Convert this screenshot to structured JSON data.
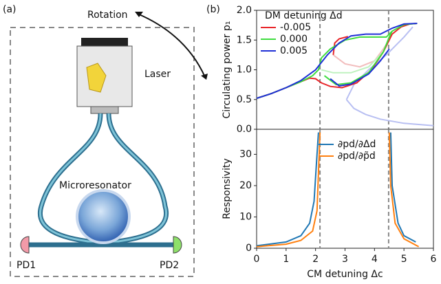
{
  "panel_a": {
    "label": "(a)",
    "rotation": "Rotation",
    "laser": "Laser",
    "microresonator": "Microresonator",
    "pd1": "PD1",
    "pd2": "PD2"
  },
  "panel_b_label": "(b)",
  "chart_data": [
    {
      "type": "line",
      "ylabel": "Circulating power p₁",
      "legend_title": "DM detuning Δd",
      "xlim": [
        0,
        6
      ],
      "ylim": [
        0,
        2
      ],
      "yticks": [
        {
          "value": 0,
          "label": "0.0"
        },
        {
          "value": 0.5,
          "label": "0.5"
        },
        {
          "value": 1,
          "label": "1.0"
        },
        {
          "value": 1.5,
          "label": "1.5"
        },
        {
          "value": 2,
          "label": "2.0"
        }
      ],
      "vlines": [
        2.15,
        4.48
      ],
      "series": [
        {
          "color": "#b8bff2",
          "x": [
            3.05,
            3.3,
            3.7,
            4.2,
            5,
            6,
            null,
            3.05,
            3.3,
            3.8,
            4.4,
            5,
            5.3
          ],
          "values": [
            0.5,
            0.35,
            0.25,
            0.17,
            0.1,
            0.06,
            null,
            0.5,
            0.75,
            1.0,
            1.25,
            1.55,
            1.72
          ]
        },
        {
          "color": "#f2bcbc",
          "x": [
            2.6,
            3,
            3.5,
            4,
            4.3,
            4.5
          ],
          "values": [
            1.25,
            1.1,
            1.05,
            1.15,
            1.35,
            1.5
          ]
        },
        {
          "color": "#bff2bf",
          "x": [
            2.2,
            2.6,
            3.2,
            3.8,
            4.3,
            4.5
          ],
          "values": [
            1.0,
            0.95,
            0.95,
            1.05,
            1.3,
            1.55
          ]
        },
        {
          "name": "-0.005",
          "color": "#e8262a",
          "x": [
            0,
            0.5,
            1,
            1.5,
            1.8,
            2.0,
            2.2,
            2.5,
            2.9,
            3.4,
            3.9,
            4.3,
            4.6,
            4.9,
            5.2,
            5.45,
            null,
            2.6,
            2.65,
            2.8,
            3.1
          ],
          "values": [
            0.52,
            0.6,
            0.7,
            0.8,
            0.86,
            0.85,
            0.78,
            0.72,
            0.7,
            0.78,
            1.0,
            1.3,
            1.6,
            1.72,
            1.77,
            1.78,
            null,
            1.25,
            1.45,
            1.52,
            1.56
          ]
        },
        {
          "name": "0.000",
          "color": "#3fdc3f",
          "x": [
            0,
            0.5,
            1,
            1.5,
            1.9,
            2.1,
            2.2,
            2.5,
            3,
            3.5,
            4,
            4.4,
            4.6,
            5,
            5.45,
            null,
            2.3,
            2.7,
            3.2,
            3.8,
            4.3,
            4.5,
            4.6
          ],
          "values": [
            0.52,
            0.6,
            0.7,
            0.8,
            0.9,
            1.0,
            1.2,
            1.35,
            1.5,
            1.55,
            1.55,
            1.55,
            1.65,
            1.76,
            1.78,
            null,
            0.9,
            0.75,
            0.78,
            0.95,
            1.3,
            1.55,
            1.65
          ]
        },
        {
          "name": "0.005",
          "color": "#1f2fd6",
          "x": [
            0,
            0.5,
            1,
            1.5,
            2,
            2.4,
            2.8,
            3.2,
            3.7,
            4.2,
            4.6,
            5,
            5.45,
            null,
            2.5,
            2.8,
            3.2,
            3.8,
            4.2,
            4.5
          ],
          "values": [
            0.52,
            0.6,
            0.7,
            0.82,
            1.0,
            1.25,
            1.45,
            1.57,
            1.6,
            1.6,
            1.7,
            1.77,
            1.78,
            null,
            0.85,
            0.73,
            0.76,
            0.93,
            1.15,
            1.35
          ]
        }
      ]
    },
    {
      "type": "line",
      "ylabel": "Responsivity",
      "xlabel": "CM detuning Δc",
      "xlim": [
        0,
        6
      ],
      "ylim": [
        0,
        38
      ],
      "xticks": [
        0,
        1,
        2,
        3,
        4,
        5,
        6
      ],
      "yticks": [
        0,
        10,
        20,
        30
      ],
      "vlines": [
        2.15,
        4.48
      ],
      "series": [
        {
          "name": "∂pd/∂Δd",
          "color": "#1f77b4",
          "x": [
            0,
            1,
            1.5,
            1.8,
            1.95,
            2.05,
            2.1,
            null,
            4.55,
            4.6,
            4.8,
            5.0,
            5.4
          ],
          "values": [
            0.8,
            2,
            4,
            8,
            15,
            30,
            37,
            null,
            37,
            20,
            8,
            4,
            2
          ]
        },
        {
          "name": "∂pd/∂p̃d",
          "color": "#ff7f0e",
          "x": [
            0,
            1,
            1.5,
            1.9,
            2.05,
            2.15,
            null,
            4.5,
            4.55,
            4.7,
            5,
            5.5
          ],
          "values": [
            0.5,
            1.3,
            2.5,
            5.5,
            12,
            37,
            null,
            37,
            20,
            8,
            3,
            0.5
          ]
        }
      ]
    }
  ]
}
